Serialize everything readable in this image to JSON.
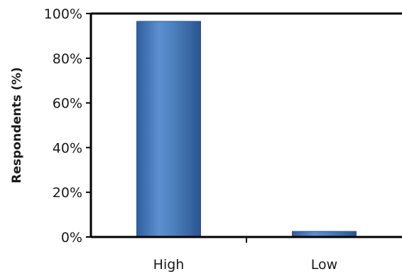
{
  "chart_data": {
    "type": "bar",
    "title": "",
    "xlabel": "",
    "ylabel": "Respondents (%)",
    "categories": [
      "High",
      "Low"
    ],
    "values": [
      96.5,
      2.5
    ],
    "ylim": [
      0,
      100
    ],
    "yticks": [
      "0%",
      "20%",
      "40%",
      "60%",
      "80%",
      "100%"
    ],
    "grid": false,
    "legend": "none",
    "bar_color": "#4a7ebb"
  }
}
